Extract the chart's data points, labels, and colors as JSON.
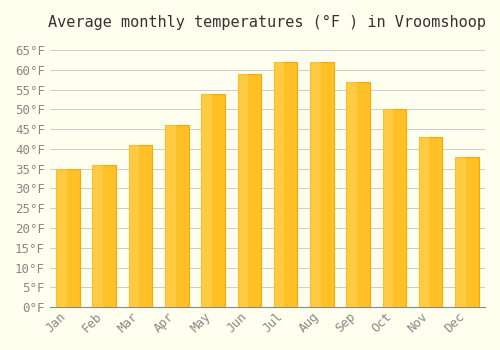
{
  "title": "Average monthly temperatures (°F ) in Vroomshoop",
  "months": [
    "Jan",
    "Feb",
    "Mar",
    "Apr",
    "May",
    "Jun",
    "Jul",
    "Aug",
    "Sep",
    "Oct",
    "Nov",
    "Dec"
  ],
  "values": [
    35,
    36,
    41,
    46,
    54,
    59,
    62,
    62,
    57,
    50,
    43,
    38
  ],
  "bar_color_face": "#FFC125",
  "bar_color_edge": "#FFA500",
  "background_color": "#FFFFF0",
  "grid_color": "#CCCCCC",
  "ylim": [
    0,
    68
  ],
  "yticks": [
    0,
    5,
    10,
    15,
    20,
    25,
    30,
    35,
    40,
    45,
    50,
    55,
    60,
    65
  ],
  "ytick_labels": [
    "0°F",
    "5°F",
    "10°F",
    "15°F",
    "20°F",
    "25°F",
    "30°F",
    "35°F",
    "40°F",
    "45°F",
    "50°F",
    "55°F",
    "60°F",
    "65°F"
  ],
  "title_fontsize": 11,
  "tick_fontsize": 9,
  "tick_color": "#888888",
  "font_family": "monospace"
}
